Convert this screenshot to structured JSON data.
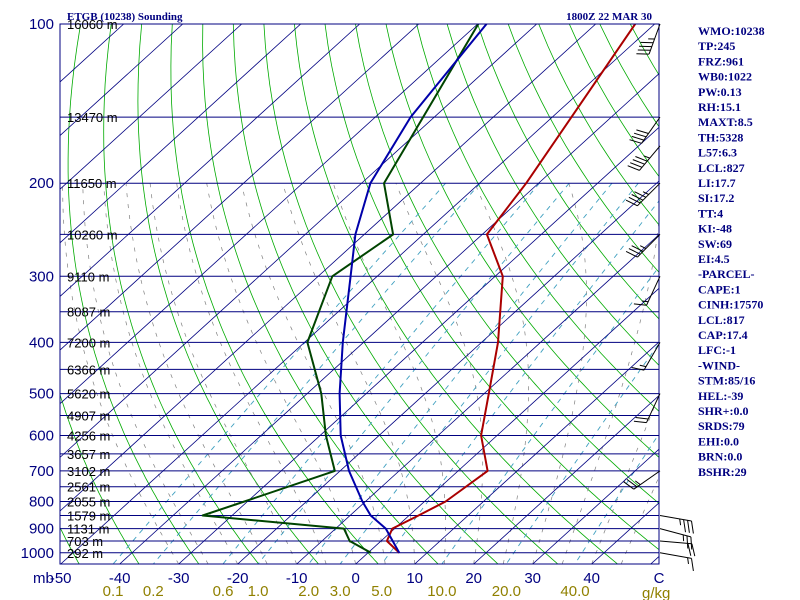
{
  "chart_data": {
    "type": "line",
    "title_left": "ETGB (10238) Sounding",
    "title_right": "1800Z 22 MAR 30",
    "pressure_unit": "mb",
    "mixing_unit": "g/kg",
    "pressure_ticks": [
      100,
      200,
      300,
      400,
      500,
      600,
      700,
      800,
      900,
      1000
    ],
    "height_labels": [
      {
        "p": 100,
        "label": "16060 m"
      },
      {
        "p": 150,
        "label": "13470 m"
      },
      {
        "p": 200,
        "label": "11650 m"
      },
      {
        "p": 250,
        "label": "10260 m"
      },
      {
        "p": 300,
        "label": "9110 m"
      },
      {
        "p": 350,
        "label": "8087 m"
      },
      {
        "p": 400,
        "label": "7200 m"
      },
      {
        "p": 450,
        "label": "6366 m"
      },
      {
        "p": 500,
        "label": "5620 m"
      },
      {
        "p": 550,
        "label": "4907 m"
      },
      {
        "p": 600,
        "label": "4256 m"
      },
      {
        "p": 650,
        "label": "3657 m"
      },
      {
        "p": 700,
        "label": "3102 m"
      },
      {
        "p": 750,
        "label": "2561 m"
      },
      {
        "p": 800,
        "label": "2055 m"
      },
      {
        "p": 850,
        "label": "1579 m"
      },
      {
        "p": 900,
        "label": "1131 m"
      },
      {
        "p": 950,
        "label": "703 m"
      },
      {
        "p": 1000,
        "label": "292 m"
      }
    ],
    "temp_ticks": [
      -50,
      -40,
      -30,
      -20,
      -10,
      0,
      10,
      20,
      30,
      40
    ],
    "temp_ticks_text": [
      "-50",
      "-40",
      "-30",
      "-20",
      "-10",
      "0",
      "10",
      "20",
      "30",
      "40",
      "C"
    ],
    "mixing_ratio_labels": [
      "0.1",
      "0.2",
      "0.6",
      "1.0",
      "2.0",
      "3.0",
      "5.0",
      "10.0",
      "20.0",
      "40.0"
    ],
    "series": [
      {
        "name": "temperature",
        "color": "#aa0000",
        "points": [
          [
            1000,
            5.3
          ],
          [
            950,
            1.0
          ],
          [
            900,
            -0.4
          ],
          [
            850,
            1.6
          ],
          [
            800,
            3.6
          ],
          [
            700,
            5.0
          ],
          [
            600,
            -2.7
          ],
          [
            500,
            -9.2
          ],
          [
            400,
            -17.2
          ],
          [
            300,
            -28.7
          ],
          [
            250,
            -39.2
          ],
          [
            200,
            -42.1
          ],
          [
            100,
            -53.3
          ]
        ]
      },
      {
        "name": "dewpoint",
        "color": "#004400",
        "points": [
          [
            1000,
            0.5
          ],
          [
            950,
            -5.3
          ],
          [
            900,
            -8.6
          ],
          [
            850,
            -35.0
          ],
          [
            800,
            -30.5
          ],
          [
            700,
            -20.9
          ],
          [
            600,
            -29.0
          ],
          [
            500,
            -37.6
          ],
          [
            400,
            -49.5
          ],
          [
            300,
            -57.6
          ],
          [
            250,
            -55.1
          ],
          [
            200,
            -66.2
          ],
          [
            100,
            -79.9
          ]
        ]
      },
      {
        "name": "parcel",
        "color": "#0000aa",
        "points": [
          [
            1000,
            5.3
          ],
          [
            900,
            -1.5
          ],
          [
            850,
            -6.5
          ],
          [
            800,
            -10.5
          ],
          [
            700,
            -18.5
          ],
          [
            600,
            -26.5
          ],
          [
            500,
            -34.5
          ],
          [
            400,
            -43.5
          ],
          [
            300,
            -54.5
          ],
          [
            250,
            -61.5
          ],
          [
            200,
            -68.5
          ],
          [
            150,
            -74.0
          ],
          [
            100,
            -78.5
          ]
        ]
      }
    ],
    "wind_barbs": [
      {
        "p": 1000,
        "dir": 100,
        "spd": 15
      },
      {
        "p": 950,
        "dir": 95,
        "spd": 20
      },
      {
        "p": 900,
        "dir": 105,
        "spd": 25
      },
      {
        "p": 850,
        "dir": 100,
        "spd": 35
      },
      {
        "p": 700,
        "dir": 235,
        "spd": 25
      },
      {
        "p": 500,
        "dir": 205,
        "spd": 20
      },
      {
        "p": 400,
        "dir": 210,
        "spd": 15
      },
      {
        "p": 300,
        "dir": 205,
        "spd": 15
      },
      {
        "p": 250,
        "dir": 225,
        "spd": 35
      },
      {
        "p": 200,
        "dir": 225,
        "spd": 45
      },
      {
        "p": 170,
        "dir": 220,
        "spd": 45
      },
      {
        "p": 150,
        "dir": 215,
        "spd": 40
      },
      {
        "p": 100,
        "dir": 200,
        "spd": 45
      }
    ],
    "indices": [
      "WMO:10238",
      "TP:245",
      "FRZ:961",
      "WB0:1022",
      "PW:0.13",
      "RH:15.1",
      "MAXT:8.5",
      "TH:5328",
      "L57:6.3",
      "LCL:827",
      "LI:17.7",
      "SI:17.2",
      "TT:4",
      "KI:-48",
      "SW:69",
      "EI:4.5",
      "-PARCEL-",
      "CAPE:1",
      "CINH:17570",
      "LCL:817",
      "CAP:17.4",
      "LFC:-1",
      "-WIND-",
      "STM:85/16",
      "HEL:-39",
      "SHR+:0.0",
      "SRDS:79",
      "EHI:0.0",
      "BRN:0.0",
      "BSHR:29"
    ],
    "colors": {
      "isobar": "#000080",
      "isotherm": "#000080",
      "dry_adiabat": "#00aa00",
      "moist_adiabat": "#808080",
      "mixing_ratio": "#40a0c0",
      "indices_text": "#000080",
      "mixing_label": "#908000"
    },
    "grid": true
  }
}
